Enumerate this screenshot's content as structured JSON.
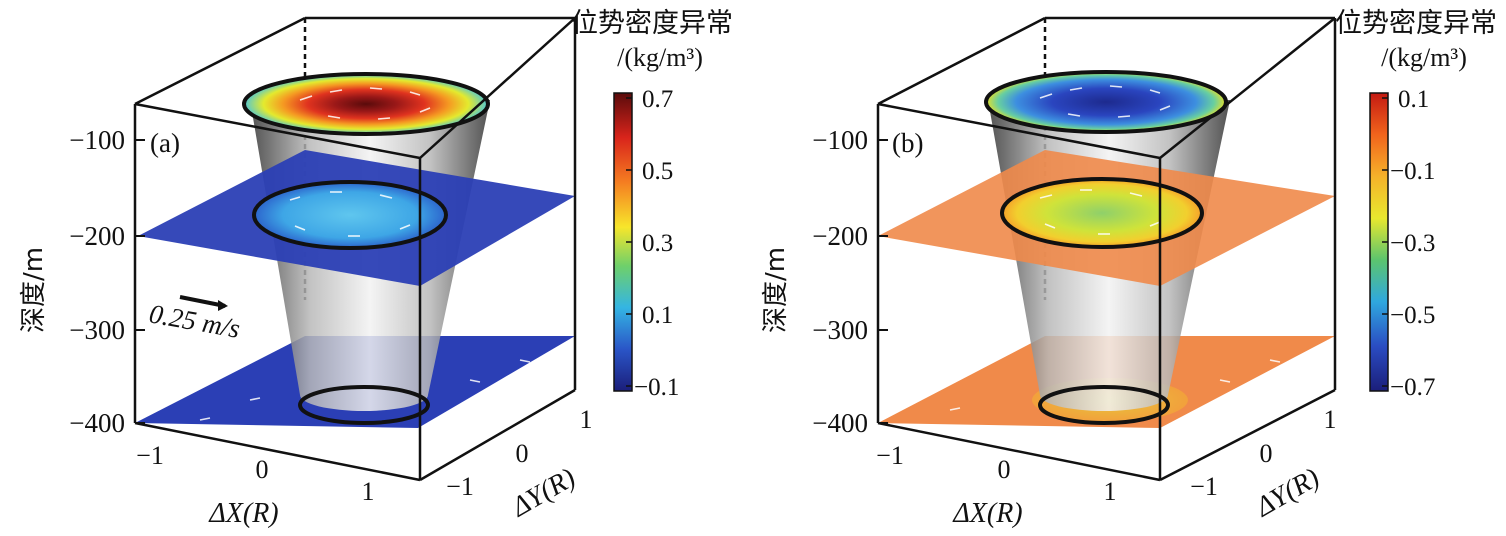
{
  "chart_data": [
    {
      "type": "3d-surface",
      "panel_label": "(a)",
      "zlabel": "深度/m",
      "xlabel": "ΔX(R)",
      "ylabel": "ΔY(R)",
      "z_ticks": [
        "−100",
        "−200",
        "−300",
        "−400"
      ],
      "z_values": [
        -100,
        -200,
        -300,
        -400
      ],
      "x_ticks": [
        "−1",
        "0",
        "1"
      ],
      "y_ticks": [
        "−1",
        "0",
        "1"
      ],
      "vector_scale_label": "0.25 m/s",
      "colorbar": {
        "title_line1": "位势密度异常",
        "title_line2": "/(kg/m³)",
        "ticks": [
          "0.7",
          "0.5",
          "0.3",
          "0.1",
          "−0.1"
        ],
        "tick_values": [
          0.7,
          0.5,
          0.3,
          0.1,
          -0.1
        ],
        "range": [
          -0.15,
          0.75
        ],
        "colormap": [
          "#7a0a0a",
          "#d9241b",
          "#f57e21",
          "#f7e62b",
          "#6fd06a",
          "#34b5e3",
          "#2a55c7",
          "#1b1e7a"
        ]
      },
      "slices": [
        {
          "depth": -50,
          "center_value": 0.7,
          "edge_value": 0.3
        },
        {
          "depth": -200,
          "center_value": 0.15,
          "edge_value": 0.0,
          "outside_value": -0.05
        },
        {
          "depth": -400,
          "center_value": -0.05,
          "edge_value": -0.05,
          "outside_value": -0.05
        }
      ]
    },
    {
      "type": "3d-surface",
      "panel_label": "(b)",
      "zlabel": "深度/m",
      "xlabel": "ΔX(R)",
      "ylabel": "ΔY(R)",
      "z_ticks": [
        "−100",
        "−200",
        "−300",
        "−400"
      ],
      "z_values": [
        -100,
        -200,
        -300,
        -400
      ],
      "x_ticks": [
        "−1",
        "0",
        "1"
      ],
      "y_ticks": [
        "−1",
        "0",
        "1"
      ],
      "colorbar": {
        "title_line1": "位势密度异常",
        "title_line2": "/(kg/m³)",
        "ticks": [
          "0.1",
          "−0.1",
          "−0.3",
          "−0.5",
          "−0.7"
        ],
        "tick_values": [
          0.1,
          -0.1,
          -0.3,
          -0.5,
          -0.7
        ],
        "range": [
          -0.75,
          0.15
        ],
        "colormap": [
          "#c41a12",
          "#f2641c",
          "#f5b22a",
          "#e8e82e",
          "#5cc46e",
          "#2fa8df",
          "#2a4cc2",
          "#1b1e7a"
        ]
      },
      "slices": [
        {
          "depth": -50,
          "center_value": -0.6,
          "edge_value": -0.4
        },
        {
          "depth": -200,
          "center_value": -0.2,
          "edge_value": -0.05,
          "outside_value": 0.0
        },
        {
          "depth": -400,
          "center_value": -0.05,
          "edge_value": 0.0,
          "outside_value": 0.0
        }
      ]
    }
  ]
}
